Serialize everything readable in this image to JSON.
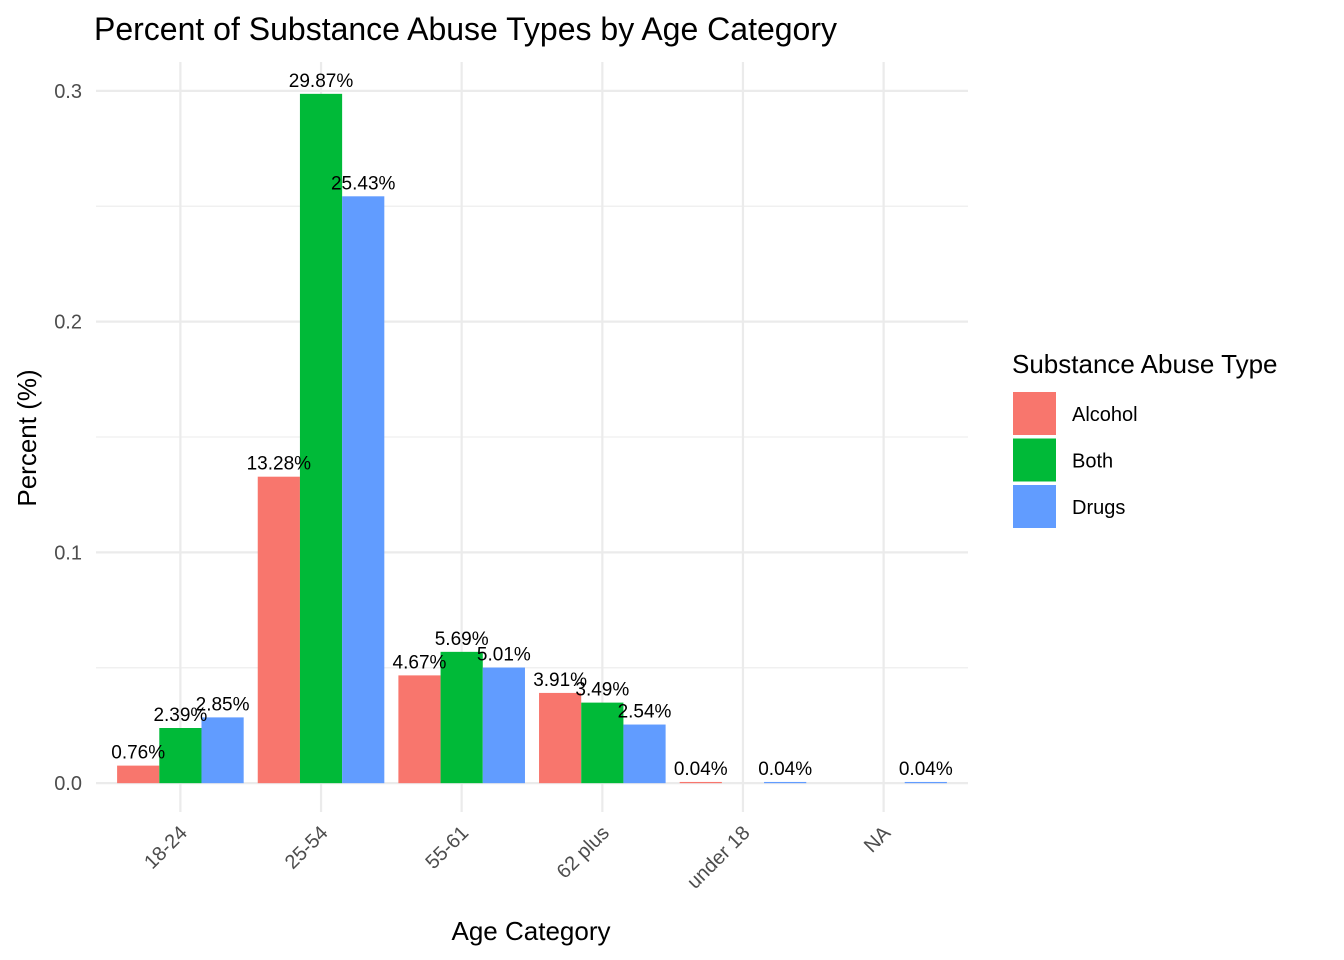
{
  "chart_data": {
    "type": "bar",
    "title": "Percent of Substance Abuse Types by Age Category",
    "xlabel": "Age Category",
    "ylabel": "Percent (%)",
    "categories": [
      "18-24",
      "25-54",
      "55-61",
      "62 plus",
      "under 18",
      "NA"
    ],
    "ylim": [
      -0.0125,
      0.3125
    ],
    "yticks": [
      0.0,
      0.1,
      0.2,
      0.3
    ],
    "ytick_labels": [
      "0.0",
      "0.1",
      "0.2",
      "0.3"
    ],
    "grid": true,
    "legend": {
      "title": "Substance Abuse Type",
      "position": "right"
    },
    "series": [
      {
        "name": "Alcohol",
        "color": "#F8766D",
        "values": [
          0.0076,
          0.1328,
          0.0467,
          0.0391,
          0.0004,
          null
        ],
        "labels": [
          "0.76%",
          "13.28%",
          "4.67%",
          "3.91%",
          "0.04%",
          null
        ]
      },
      {
        "name": "Both",
        "color": "#00BA38",
        "values": [
          0.0239,
          0.2987,
          0.0569,
          0.0349,
          null,
          null
        ],
        "labels": [
          "2.39%",
          "29.87%",
          "5.69%",
          "3.49%",
          null,
          null
        ]
      },
      {
        "name": "Drugs",
        "color": "#619CFF",
        "values": [
          0.0285,
          0.2543,
          0.0501,
          0.0254,
          0.0004,
          0.0004
        ],
        "labels": [
          "2.85%",
          "25.43%",
          "5.01%",
          "2.54%",
          "0.04%",
          "0.04%"
        ]
      }
    ]
  }
}
